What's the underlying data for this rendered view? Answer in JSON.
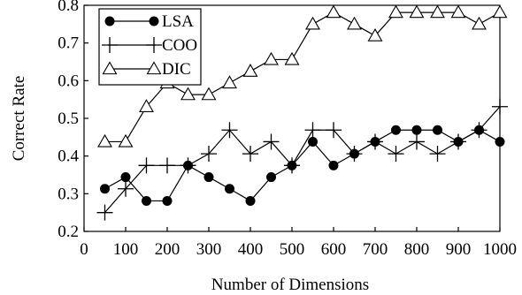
{
  "chart_data": {
    "type": "line",
    "x": [
      50,
      100,
      150,
      200,
      250,
      300,
      350,
      400,
      450,
      500,
      550,
      600,
      650,
      700,
      750,
      800,
      850,
      900,
      950,
      1000
    ],
    "series": [
      {
        "name": "LSA",
        "marker": "filled-circle",
        "color": "#000000",
        "values": [
          0.313,
          0.344,
          0.281,
          0.281,
          0.375,
          0.344,
          0.313,
          0.281,
          0.344,
          0.375,
          0.438,
          0.375,
          0.406,
          0.438,
          0.469,
          0.469,
          0.469,
          0.438,
          0.469,
          0.438
        ]
      },
      {
        "name": "COO",
        "marker": "plus",
        "color": "#000000",
        "values": [
          0.25,
          0.313,
          0.375,
          0.375,
          0.375,
          0.406,
          0.469,
          0.406,
          0.438,
          0.375,
          0.469,
          0.469,
          0.406,
          0.438,
          0.406,
          0.438,
          0.406,
          0.438,
          0.469,
          0.531
        ]
      },
      {
        "name": "DIC",
        "marker": "open-triangle",
        "color": "#000000",
        "values": [
          0.438,
          0.438,
          0.531,
          0.594,
          0.563,
          0.563,
          0.594,
          0.625,
          0.656,
          0.656,
          0.75,
          0.781,
          0.75,
          0.719,
          0.781,
          0.781,
          0.781,
          0.781,
          0.75,
          0.781
        ]
      }
    ],
    "xlabel": "Number of Dimensions",
    "ylabel": "Correct Rate",
    "xlim": [
      0,
      1000
    ],
    "ylim": [
      0.2,
      0.8
    ],
    "xticks": [
      "0",
      "100",
      "200",
      "300",
      "400",
      "500",
      "600",
      "700",
      "800",
      "900",
      "1000"
    ],
    "yticks": [
      "0.2",
      "0.3",
      "0.4",
      "0.5",
      "0.6",
      "0.7",
      "0.8"
    ],
    "grid": false,
    "legend_position": "top-left"
  }
}
